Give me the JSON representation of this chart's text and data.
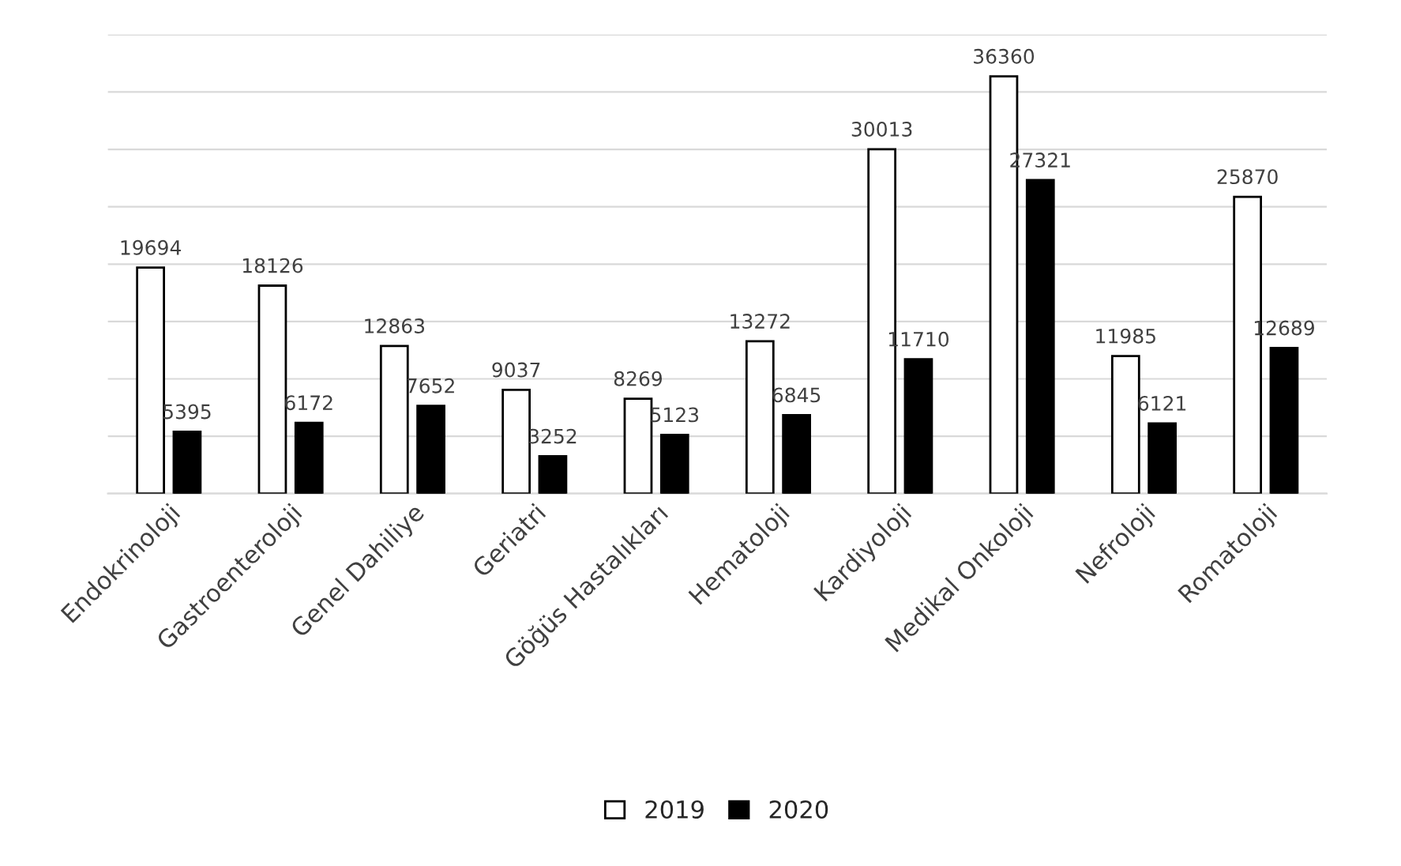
{
  "chart_data": {
    "type": "bar",
    "categories": [
      "Endokrinoloji",
      "Gastroenteroloji",
      "Genel Dahiliye",
      "Geriatri",
      "Göğüs Hastalıkları",
      "Hematoloji",
      "Kardiyoloji",
      "Medikal Onkoloji",
      "Nefroloji",
      "Romatoloji"
    ],
    "series": [
      {
        "name": "2019",
        "color": "#ffffff",
        "values": [
          19694,
          18126,
          12863,
          9037,
          8269,
          13272,
          30013,
          36360,
          11985,
          25870
        ]
      },
      {
        "name": "2020",
        "color": "#000000",
        "values": [
          5395,
          6172,
          7652,
          3252,
          5123,
          6845,
          11710,
          27321,
          6121,
          12689
        ]
      }
    ],
    "ylim": [
      0,
      40000
    ],
    "yticks": [
      {
        "value": 0,
        "label": null
      },
      {
        "value": 5000,
        "label": null
      },
      {
        "value": 10000,
        "label": null
      },
      {
        "value": 15000,
        "label": null
      },
      {
        "value": 20000,
        "label": null
      },
      {
        "value": 25000,
        "label": null
      },
      {
        "value": 30000,
        "label": null
      },
      {
        "value": 35000,
        "label": null
      },
      {
        "value": 40000,
        "label": null
      }
    ],
    "tick_labels": "x",
    "grid": "y",
    "legend": "bottom",
    "data_labels": true
  }
}
